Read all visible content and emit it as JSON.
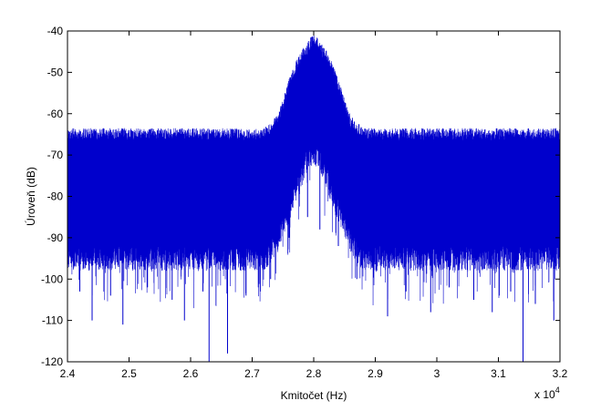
{
  "chart_data": {
    "type": "line",
    "title": "",
    "xlabel": "Kmitočet (Hz)",
    "ylabel": "Úroveň (dB)",
    "x_multiplier_label": "x 10",
    "x_multiplier_exponent": "4",
    "xlim": [
      2.4,
      3.2
    ],
    "ylim": [
      -120,
      -40
    ],
    "x_ticks": [
      2.4,
      2.5,
      2.6,
      2.7,
      2.8,
      2.9,
      3.0,
      3.1,
      3.2
    ],
    "x_tick_labels": [
      "2.4",
      "2.5",
      "2.6",
      "2.7",
      "2.8",
      "2.9",
      "3",
      "3.1",
      "3.2"
    ],
    "y_ticks": [
      -40,
      -50,
      -60,
      -70,
      -80,
      -90,
      -100,
      -110,
      -120
    ],
    "y_tick_labels": [
      "-40",
      "-50",
      "-60",
      "-70",
      "-80",
      "-90",
      "-100",
      "-110",
      "-120"
    ],
    "grid": false,
    "legend": "none",
    "line_color": "#0000cc",
    "series": [
      {
        "x": [
          2.4,
          2.45,
          2.5,
          2.55,
          2.6,
          2.65,
          2.7,
          2.72,
          2.74,
          2.75,
          2.76,
          2.77,
          2.78,
          2.79,
          2.8,
          2.81,
          2.82,
          2.83,
          2.84,
          2.85,
          2.86,
          2.88,
          2.9,
          2.95,
          3.0,
          3.05,
          3.1,
          3.15,
          3.2
        ],
        "upper": [
          -65,
          -65,
          -65,
          -65,
          -65,
          -65,
          -65,
          -65,
          -62,
          -58,
          -53,
          -49,
          -46,
          -44,
          -42,
          -44,
          -46,
          -49,
          -53,
          -58,
          -62,
          -65,
          -65,
          -65,
          -65,
          -65,
          -65,
          -65,
          -65
        ],
        "lower": [
          -92,
          -92,
          -92,
          -92,
          -92,
          -92,
          -92,
          -92,
          -88,
          -84,
          -80,
          -76,
          -72,
          -68,
          -66,
          -68,
          -72,
          -76,
          -80,
          -84,
          -88,
          -92,
          -92,
          -92,
          -92,
          -92,
          -92,
          -92,
          -92
        ]
      }
    ],
    "deep_dips": [
      {
        "x": 2.42,
        "y": -103
      },
      {
        "x": 2.44,
        "y": -110
      },
      {
        "x": 2.47,
        "y": -104
      },
      {
        "x": 2.49,
        "y": -111
      },
      {
        "x": 2.53,
        "y": -102
      },
      {
        "x": 2.57,
        "y": -105
      },
      {
        "x": 2.59,
        "y": -110
      },
      {
        "x": 2.62,
        "y": -103
      },
      {
        "x": 2.63,
        "y": -120
      },
      {
        "x": 2.66,
        "y": -118
      },
      {
        "x": 2.69,
        "y": -104
      },
      {
        "x": 2.71,
        "y": -102
      },
      {
        "x": 2.73,
        "y": -100
      },
      {
        "x": 2.76,
        "y": -90
      },
      {
        "x": 2.79,
        "y": -85
      },
      {
        "x": 2.81,
        "y": -88
      },
      {
        "x": 2.84,
        "y": -92
      },
      {
        "x": 2.87,
        "y": -100
      },
      {
        "x": 2.92,
        "y": -109
      },
      {
        "x": 2.95,
        "y": -103
      },
      {
        "x": 2.99,
        "y": -108
      },
      {
        "x": 3.02,
        "y": -102
      },
      {
        "x": 3.06,
        "y": -105
      },
      {
        "x": 3.09,
        "y": -108
      },
      {
        "x": 3.12,
        "y": -103
      },
      {
        "x": 3.14,
        "y": -120
      },
      {
        "x": 3.16,
        "y": -106
      },
      {
        "x": 3.19,
        "y": -110
      }
    ]
  }
}
